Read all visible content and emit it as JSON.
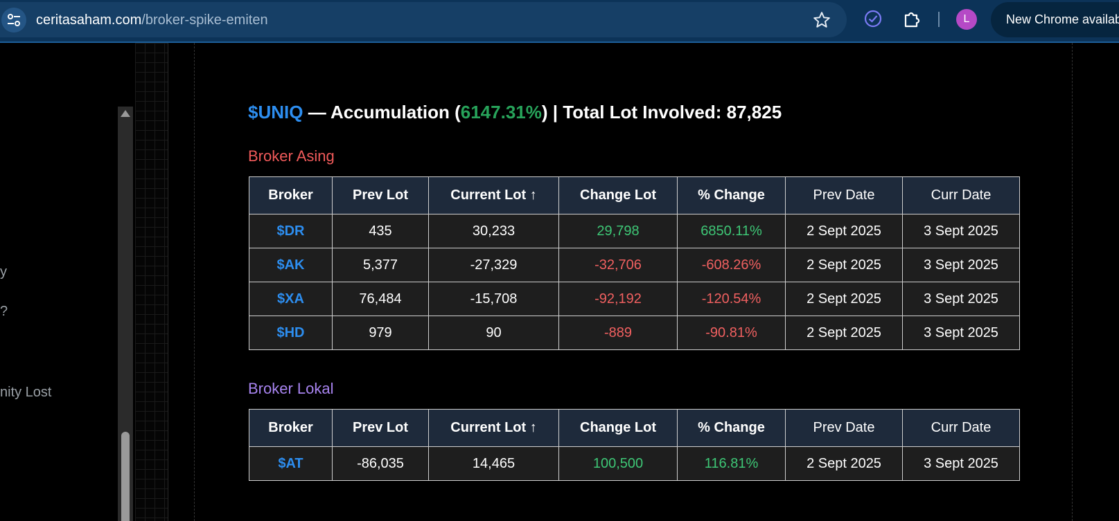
{
  "browser": {
    "url_host": "ceritasaham.com",
    "url_path": "/broker-spike-emiten",
    "avatar_letter": "L",
    "update_label": "New Chrome availab"
  },
  "sidebar": {
    "fragments": [
      "y",
      "?",
      "nity Lost"
    ]
  },
  "headline": {
    "symbol": "$UNIQ",
    "sep1": " — Accumulation (",
    "percent": "6147.31%",
    "sep2": ") | Total Lot Involved: 87,825"
  },
  "columns": [
    "Broker",
    "Prev Lot",
    "Current Lot ↑",
    "Change Lot",
    "% Change",
    "Prev Date",
    "Curr Date"
  ],
  "sections": {
    "asing": {
      "title": "Broker Asing",
      "rows": [
        {
          "broker": "$DR",
          "prev_lot": "435",
          "current_lot": "30,233",
          "change_lot": "29,798",
          "pct_change": "6850.11%",
          "prev_date": "2 Sept 2025",
          "curr_date": "3 Sept 2025",
          "direction": "pos"
        },
        {
          "broker": "$AK",
          "prev_lot": "5,377",
          "current_lot": "-27,329",
          "change_lot": "-32,706",
          "pct_change": "-608.26%",
          "prev_date": "2 Sept 2025",
          "curr_date": "3 Sept 2025",
          "direction": "neg"
        },
        {
          "broker": "$XA",
          "prev_lot": "76,484",
          "current_lot": "-15,708",
          "change_lot": "-92,192",
          "pct_change": "-120.54%",
          "prev_date": "2 Sept 2025",
          "curr_date": "3 Sept 2025",
          "direction": "neg"
        },
        {
          "broker": "$HD",
          "prev_lot": "979",
          "current_lot": "90",
          "change_lot": "-889",
          "pct_change": "-90.81%",
          "prev_date": "2 Sept 2025",
          "curr_date": "3 Sept 2025",
          "direction": "neg"
        }
      ]
    },
    "lokal": {
      "title": "Broker Lokal",
      "rows": [
        {
          "broker": "$AT",
          "prev_lot": "-86,035",
          "current_lot": "14,465",
          "change_lot": "100,500",
          "pct_change": "116.81%",
          "prev_date": "2 Sept 2025",
          "curr_date": "3 Sept 2025",
          "direction": "pos"
        }
      ]
    }
  },
  "colors": {
    "symbol_blue": "#2d8ef0",
    "positive_green": "#3ec776",
    "negative_red": "#f06060",
    "asing_title": "#f05a5a",
    "lokal_title": "#a884f0"
  }
}
